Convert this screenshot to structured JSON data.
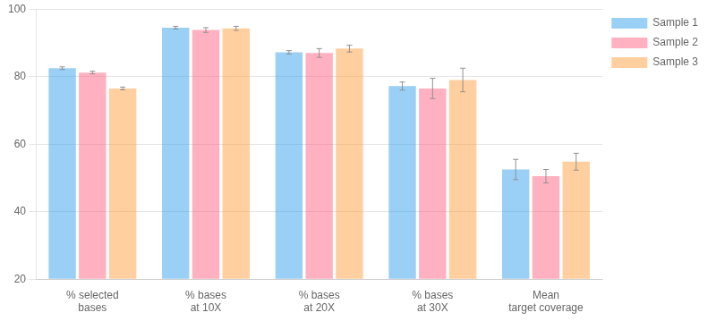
{
  "chart_data": {
    "type": "bar",
    "categories": [
      "% selected\nbases",
      "% bases\nat 10X",
      "% bases\nat 20X",
      "% bases\nat 30X",
      "Mean\ntarget coverage"
    ],
    "series": [
      {
        "name": "Sample 1",
        "values": [
          82.5,
          94.5,
          87.2,
          77.2,
          52.5
        ],
        "errors": [
          0.4,
          0.4,
          0.5,
          1.2,
          3.0
        ]
      },
      {
        "name": "Sample 2",
        "values": [
          81.2,
          93.8,
          87.0,
          76.5,
          50.5
        ],
        "errors": [
          0.4,
          0.7,
          1.3,
          3.0,
          2.0
        ]
      },
      {
        "name": "Sample 3",
        "values": [
          76.5,
          94.3,
          88.3,
          79.0,
          54.8
        ],
        "errors": [
          0.4,
          0.6,
          1.0,
          3.5,
          2.5
        ]
      }
    ],
    "ylim": [
      20,
      100
    ],
    "yticks": [
      20,
      40,
      60,
      80,
      100
    ],
    "grid": true,
    "legend": "right"
  }
}
